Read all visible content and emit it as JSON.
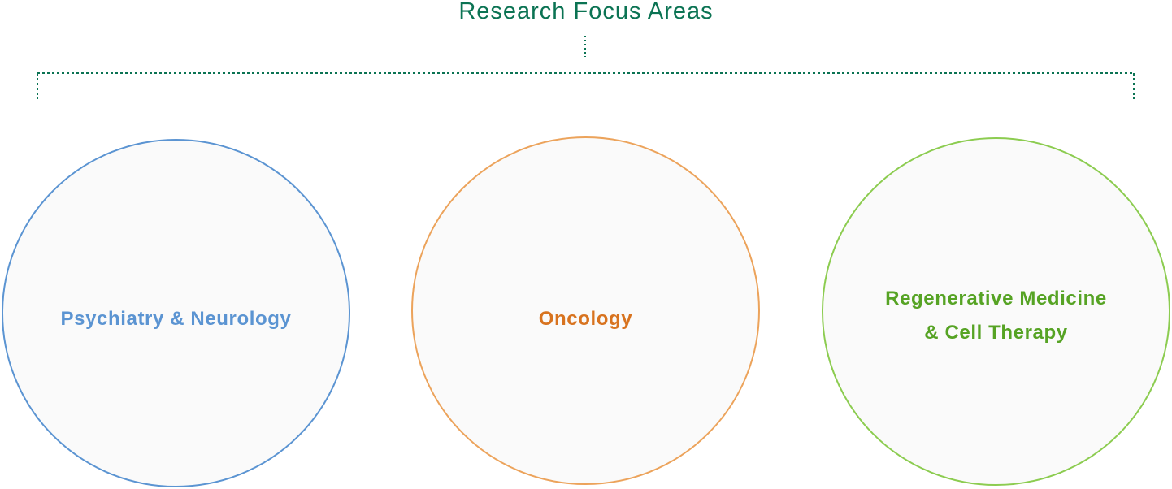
{
  "diagram": {
    "title": "Research Focus Areas",
    "areas": [
      {
        "label": "Psychiatry & Neurology",
        "color": "#5b94d2"
      },
      {
        "label": "Oncology",
        "color": "#d8731f"
      },
      {
        "label": "Regenerative Medicine\n& Cell Therapy",
        "color": "#56a324"
      }
    ],
    "connector_color": "#0b7353"
  }
}
